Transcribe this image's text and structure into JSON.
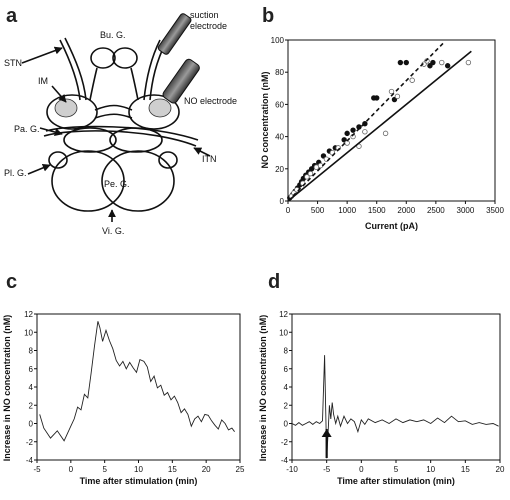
{
  "panels": {
    "a": {
      "letter": "a",
      "labels": {
        "suction": "suction",
        "electrode": "electrode",
        "bu_g": "Bu. G.",
        "stn": "STN",
        "im": "IM",
        "no_electrode": "NO electrode",
        "pa_g": "Pa. G.",
        "itn": "ITN",
        "pl_g": "Pl. G.",
        "pe_g": "Pe. G.",
        "vi_g": "Vi. G."
      }
    },
    "b": {
      "letter": "b"
    },
    "c": {
      "letter": "c"
    },
    "d": {
      "letter": "d"
    }
  },
  "chart_data": [
    {
      "panel": "b",
      "type": "scatter",
      "xlabel": "Current (pA)",
      "ylabel": "NO concentration (nM)",
      "xlim": [
        0,
        3500
      ],
      "ylim": [
        0,
        100
      ],
      "xticks": [
        "0",
        "500",
        "1000",
        "1500",
        "2000",
        "2500",
        "3000",
        "3500"
      ],
      "yticks": [
        "0",
        "20",
        "40",
        "60",
        "80",
        "100"
      ],
      "series": [
        {
          "style": "filled",
          "points": [
            [
              30,
              2
            ],
            [
              80,
              4
            ],
            [
              120,
              6
            ],
            [
              160,
              8
            ],
            [
              200,
              10
            ],
            [
              230,
              12
            ],
            [
              260,
              14
            ],
            [
              300,
              16
            ],
            [
              350,
              18
            ],
            [
              400,
              20
            ],
            [
              450,
              22
            ],
            [
              520,
              24
            ],
            [
              600,
              28
            ],
            [
              700,
              31
            ],
            [
              800,
              33
            ],
            [
              950,
              38
            ],
            [
              1000,
              42
            ],
            [
              1100,
              44
            ],
            [
              1200,
              46
            ],
            [
              1300,
              48
            ],
            [
              1450,
              64
            ],
            [
              1500,
              64
            ],
            [
              1800,
              63
            ],
            [
              1900,
              86
            ],
            [
              2000,
              86
            ],
            [
              2400,
              84
            ],
            [
              2450,
              86
            ],
            [
              2700,
              84
            ]
          ]
        },
        {
          "style": "open",
          "points": [
            [
              60,
              3
            ],
            [
              100,
              5
            ],
            [
              150,
              7
            ],
            [
              250,
              11
            ],
            [
              320,
              15
            ],
            [
              380,
              17
            ],
            [
              480,
              21
            ],
            [
              550,
              22
            ],
            [
              650,
              26
            ],
            [
              750,
              30
            ],
            [
              850,
              33
            ],
            [
              1000,
              36
            ],
            [
              1100,
              40
            ],
            [
              1200,
              34
            ],
            [
              1300,
              43
            ],
            [
              1650,
              42
            ],
            [
              1750,
              68
            ],
            [
              1850,
              65
            ],
            [
              2100,
              75
            ],
            [
              2300,
              85
            ],
            [
              2350,
              87
            ],
            [
              2600,
              86
            ],
            [
              3050,
              86
            ]
          ]
        },
        {
          "style": "solid-fit",
          "points": [
            [
              0,
              0
            ],
            [
              3100,
              93
            ]
          ]
        },
        {
          "style": "dashed-fit",
          "points": [
            [
              0,
              0
            ],
            [
              2650,
              99
            ]
          ]
        }
      ]
    },
    {
      "panel": "c",
      "type": "line",
      "xlabel": "Time after stimulation (min)",
      "ylabel": "Increase in NO concentration (nM)",
      "xlim": [
        -5,
        25
      ],
      "ylim": [
        -4,
        12
      ],
      "xticks": [
        "-5",
        "0",
        "5",
        "10",
        "15",
        "20",
        "25"
      ],
      "yticks": [
        "-4",
        "-2",
        "0",
        "2",
        "4",
        "6",
        "8",
        "10",
        "12"
      ],
      "series": [
        {
          "points": [
            [
              -4.6,
              1.0
            ],
            [
              -4,
              -0.5
            ],
            [
              -3,
              -1.6
            ],
            [
              -2,
              -0.8
            ],
            [
              -1,
              -1.9
            ],
            [
              0,
              -0.3
            ],
            [
              0.5,
              0.5
            ],
            [
              1,
              1.8
            ],
            [
              1.5,
              1.5
            ],
            [
              2,
              3.2
            ],
            [
              2.5,
              2.8
            ],
            [
              3,
              5.5
            ],
            [
              3.5,
              8.5
            ],
            [
              4,
              11.2
            ],
            [
              4.3,
              10.5
            ],
            [
              4.7,
              9.0
            ],
            [
              5.2,
              10.2
            ],
            [
              5.7,
              9.1
            ],
            [
              6.2,
              8.2
            ],
            [
              6.7,
              6.9
            ],
            [
              7.2,
              6.3
            ],
            [
              7.7,
              6.8
            ],
            [
              8.2,
              6.0
            ],
            [
              8.7,
              6.7
            ],
            [
              9.2,
              6.1
            ],
            [
              9.7,
              5.6
            ],
            [
              10.2,
              7.0
            ],
            [
              10.8,
              6.8
            ],
            [
              11.3,
              6.2
            ],
            [
              11.8,
              4.6
            ],
            [
              12.3,
              5.2
            ],
            [
              12.8,
              3.9
            ],
            [
              13.3,
              4.2
            ],
            [
              13.8,
              3.1
            ],
            [
              14.3,
              3.4
            ],
            [
              14.8,
              2.6
            ],
            [
              15.3,
              3.0
            ],
            [
              15.8,
              2.3
            ],
            [
              16.3,
              1.2
            ],
            [
              16.8,
              1.6
            ],
            [
              17.3,
              1.0
            ],
            [
              17.8,
              -0.3
            ],
            [
              18.3,
              0.5
            ],
            [
              18.8,
              0.8
            ],
            [
              19.3,
              0.2
            ],
            [
              19.8,
              1.0
            ],
            [
              20.3,
              0.9
            ],
            [
              20.8,
              0.3
            ],
            [
              21.3,
              -0.2
            ],
            [
              21.8,
              -0.6
            ],
            [
              22.3,
              0.4
            ],
            [
              22.8,
              0.0
            ],
            [
              23.3,
              -0.7
            ],
            [
              23.8,
              -0.5
            ],
            [
              24.2,
              -0.9
            ]
          ]
        }
      ]
    },
    {
      "panel": "d",
      "type": "line",
      "xlabel": "Time after stimulation (min)",
      "ylabel": "Increase in NO concentration (nM)",
      "xlim": [
        -10,
        20
      ],
      "ylim": [
        -4,
        12
      ],
      "xticks": [
        "-10",
        "-5",
        "0",
        "5",
        "10",
        "15",
        "20"
      ],
      "yticks": [
        "-4",
        "-2",
        "0",
        "2",
        "4",
        "6",
        "8",
        "10",
        "12"
      ],
      "series": [
        {
          "points": [
            [
              -10,
              0.0
            ],
            [
              -9.5,
              -0.2
            ],
            [
              -9,
              0.1
            ],
            [
              -8.5,
              -0.2
            ],
            [
              -8,
              0.0
            ],
            [
              -7.5,
              0.2
            ],
            [
              -7,
              -0.1
            ],
            [
              -6.5,
              0.2
            ],
            [
              -6,
              0.0
            ],
            [
              -5.6,
              0.3
            ],
            [
              -5.3,
              7.5
            ],
            [
              -5.15,
              2.0
            ],
            [
              -5.0,
              -3.8
            ],
            [
              -4.8,
              -1.0
            ],
            [
              -4.6,
              2.0
            ],
            [
              -4.4,
              0.5
            ],
            [
              -4.2,
              2.3
            ],
            [
              -4.0,
              1.0
            ],
            [
              -3.7,
              0.0
            ],
            [
              -3.4,
              0.8
            ],
            [
              -3.0,
              -0.3
            ],
            [
              -2.5,
              0.8
            ],
            [
              -2.0,
              0.0
            ],
            [
              -1.5,
              0.5
            ],
            [
              -1,
              0.2
            ],
            [
              -0.5,
              -0.9
            ],
            [
              0,
              0.4
            ],
            [
              0.5,
              -0.1
            ],
            [
              1,
              0.5
            ],
            [
              2,
              0.1
            ],
            [
              3,
              0.4
            ],
            [
              4,
              0.0
            ],
            [
              5,
              0.5
            ],
            [
              6,
              0.1
            ],
            [
              7,
              0.4
            ],
            [
              8,
              0.2
            ],
            [
              9,
              0.4
            ],
            [
              10,
              0.0
            ],
            [
              11,
              0.6
            ],
            [
              12,
              0.1
            ],
            [
              13,
              0.8
            ],
            [
              14,
              0.2
            ],
            [
              15,
              0.3
            ],
            [
              16,
              -0.1
            ],
            [
              17,
              0.1
            ],
            [
              18,
              -0.1
            ],
            [
              19,
              0.0
            ],
            [
              19.8,
              -0.3
            ]
          ]
        }
      ]
    }
  ]
}
